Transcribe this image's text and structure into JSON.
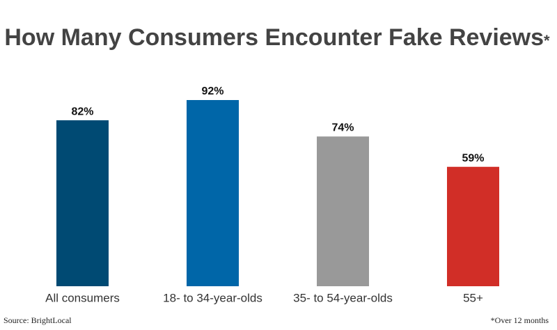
{
  "chart_data": {
    "type": "bar",
    "title": "How Many Consumers Encounter Fake Reviews",
    "title_mark": "*",
    "categories": [
      "All consumers",
      "18- to 34-year-olds",
      "35- to 54-year-olds",
      "55+"
    ],
    "values": [
      82,
      92,
      74,
      59
    ],
    "value_labels": [
      "82%",
      "92%",
      "74%",
      "59%"
    ],
    "colors": [
      "#004a73",
      "#0066a8",
      "#999999",
      "#d12e27"
    ],
    "source": "Source: BrightLocal",
    "footnote": "*Over 12 months"
  }
}
